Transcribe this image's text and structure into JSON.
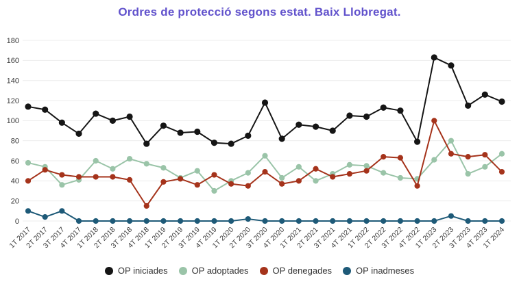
{
  "title": "Ordres de protecció segons estat. Baix Llobregat.",
  "title_color": "#6152cc",
  "axis_text_color": "#3a3a3a",
  "gridline_color": "#ececec",
  "chart_data": {
    "type": "line",
    "title": "Ordres de protecció segons estat. Baix Llobregat.",
    "xlabel": "",
    "ylabel": "",
    "ylim": [
      0,
      180
    ],
    "yticks": [
      0,
      20,
      40,
      60,
      80,
      100,
      120,
      140,
      160,
      180
    ],
    "grid": true,
    "legend_position": "bottom",
    "categories": [
      "1T 2017",
      "2T 2017",
      "3T 2017",
      "4T 2017",
      "1T 2018",
      "2T 2018",
      "3T 2018",
      "4T 2018",
      "1T 2019",
      "2T 2019",
      "3T 2019",
      "4T 2019",
      "1T 2020",
      "2T 2020",
      "3T 2020",
      "4T 2020",
      "1T 2021",
      "2T 2021",
      "3T 2021",
      "4T 2021",
      "1T 2022",
      "2T 2022",
      "3T 2022",
      "4T 2022",
      "1T 2023",
      "2T 2023",
      "3T 2023",
      "4T 2023",
      "1T 2024"
    ],
    "series": [
      {
        "name": "OP iniciades",
        "color": "#151515",
        "values": [
          114,
          111,
          98,
          87,
          107,
          100,
          104,
          77,
          95,
          88,
          89,
          78,
          77,
          85,
          118,
          82,
          96,
          94,
          90,
          105,
          104,
          113,
          110,
          79,
          163,
          155,
          115,
          126,
          119
        ]
      },
      {
        "name": "OP adoptades",
        "color": "#9ac4a8",
        "values": [
          58,
          54,
          36,
          41,
          60,
          52,
          62,
          57,
          53,
          43,
          50,
          30,
          40,
          48,
          65,
          43,
          54,
          40,
          47,
          56,
          55,
          48,
          43,
          42,
          61,
          80,
          47,
          54,
          67
        ]
      },
      {
        "name": "OP denegades",
        "color": "#a5331b",
        "values": [
          40,
          51,
          46,
          44,
          44,
          44,
          41,
          15,
          39,
          42,
          36,
          46,
          37,
          35,
          49,
          37,
          40,
          52,
          44,
          47,
          50,
          64,
          63,
          35,
          100,
          67,
          64,
          66,
          49
        ]
      },
      {
        "name": "OP inadmeses",
        "color": "#1e5a78",
        "values": [
          10,
          4,
          10,
          0,
          0,
          0,
          0,
          0,
          0,
          0,
          0,
          0,
          0,
          2,
          0,
          0,
          0,
          0,
          0,
          0,
          0,
          0,
          0,
          0,
          0,
          5,
          0,
          0,
          0
        ]
      }
    ]
  }
}
